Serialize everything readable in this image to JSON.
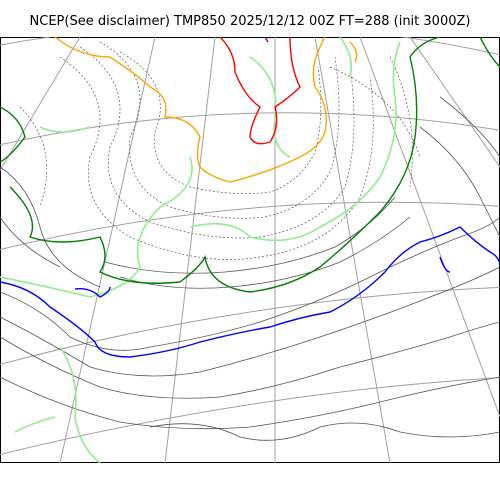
{
  "title": "NCEP(See disclaimer) TMP850 2025/12/12 00Z FT=288 (init 3000Z)",
  "colors": {
    "coastline": "#000000",
    "gridlines": "#a0a0a0",
    "isotherm_minor": "#555555",
    "isotherm_dotted": "#555555",
    "isotherm_green": "#008000",
    "isotherm_lightgreen": "#90ee90",
    "isotherm_orange": "#ffa500",
    "isotherm_red": "#ff0000",
    "isotherm_blue": "#0000ff",
    "isotherm_purple": "#800080"
  }
}
